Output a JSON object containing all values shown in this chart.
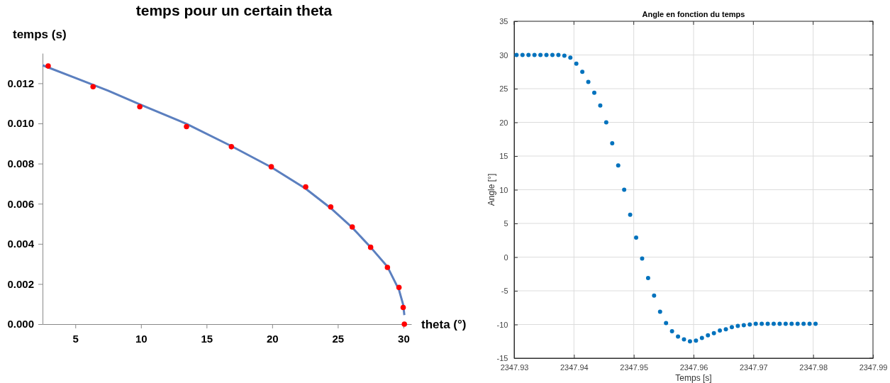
{
  "chart_data": [
    {
      "type": "scatter",
      "title": "temps pour un certain theta",
      "xlabel": "theta (°)",
      "ylabel": "temps (s)",
      "xlim": [
        2.5,
        30.6
      ],
      "ylim": [
        0,
        0.0135
      ],
      "xticks": [
        5,
        10,
        15,
        20,
        25,
        30
      ],
      "yticks": [
        {
          "value": 0,
          "label": "0.000"
        },
        {
          "value": 0.002,
          "label": "0.002"
        },
        {
          "value": 0.004,
          "label": "0.004"
        },
        {
          "value": 0.006,
          "label": "0.006"
        },
        {
          "value": 0.008,
          "label": "0.008"
        },
        {
          "value": 0.01,
          "label": "0.010"
        },
        {
          "value": 0.012,
          "label": "0.012"
        }
      ],
      "grid": false,
      "series": [
        {
          "type": "line",
          "color": "#5b7fbf",
          "line_style": "solid",
          "marker": "none",
          "x": [
            2.5,
            5,
            7.5,
            9.91,
            13.47,
            16.89,
            19.93,
            22.55,
            24.46,
            26.1,
            27.5,
            28.78,
            29.66,
            29.98,
            30.07
          ],
          "values": [
            0.0129,
            0.01227,
            0.01163,
            0.01095,
            0.00998,
            0.00887,
            0.00782,
            0.00675,
            0.00578,
            0.00481,
            0.00383,
            0.00286,
            0.00171,
            0.00097,
            0.00045
          ]
        },
        {
          "type": "scatter",
          "color": "#ff0000",
          "marker": "circle",
          "x": [
            2.93,
            6.35,
            9.91,
            13.47,
            16.89,
            19.93,
            22.55,
            24.46,
            26.1,
            27.5,
            28.78,
            29.66,
            29.98,
            30.07
          ],
          "values": [
            0.01286,
            0.01183,
            0.01083,
            0.00984,
            0.00884,
            0.00784,
            0.00684,
            0.00584,
            0.00484,
            0.00383,
            0.00283,
            0.00183,
            0.00083,
            0
          ]
        }
      ]
    },
    {
      "type": "scatter",
      "title": "Angle en fonction du temps",
      "xlabel": "Temps [s]",
      "ylabel": "Angle [°]",
      "xlim": [
        2347.93,
        2347.99
      ],
      "ylim": [
        -15,
        35
      ],
      "xticks": [
        2347.93,
        2347.94,
        2347.95,
        2347.96,
        2347.97,
        2347.98,
        2347.99
      ],
      "yticks": [
        -15,
        -10,
        -5,
        0,
        5,
        10,
        15,
        20,
        25,
        30,
        35
      ],
      "grid": true,
      "series": [
        {
          "type": "scatter",
          "color": "#0072bd",
          "marker": "circle",
          "x": [
            2347.9304,
            2347.9314,
            2347.9324,
            2347.9334,
            2347.9344,
            2347.9354,
            2347.9364,
            2347.9374,
            2347.9384,
            2347.9394,
            2347.9404,
            2347.9414,
            2347.9424,
            2347.9434,
            2347.9444,
            2347.9454,
            2347.9464,
            2347.9474,
            2347.9484,
            2347.9494,
            2347.9504,
            2347.9514,
            2347.9524,
            2347.9534,
            2347.9544,
            2347.9554,
            2347.9564,
            2347.9574,
            2347.9584,
            2347.9594,
            2347.9604,
            2347.9614,
            2347.9624,
            2347.9634,
            2347.9644,
            2347.9654,
            2347.9664,
            2347.9674,
            2347.9684,
            2347.9694,
            2347.9704,
            2347.9714,
            2347.9724,
            2347.9734,
            2347.9744,
            2347.9754,
            2347.9764,
            2347.9774,
            2347.9784,
            2347.9794,
            2347.9804
          ],
          "values": [
            30,
            30,
            30,
            30,
            30,
            30,
            30,
            30,
            29.9,
            29.6,
            28.7,
            27.5,
            26,
            24.4,
            22.5,
            20,
            16.9,
            13.6,
            10,
            6.3,
            2.9,
            -0.2,
            -3.1,
            -5.7,
            -8.1,
            -9.8,
            -11,
            -11.8,
            -12.2,
            -12.5,
            -12.4,
            -12,
            -11.6,
            -11.3,
            -10.9,
            -10.7,
            -10.4,
            -10.2,
            -10.1,
            -10,
            -9.9,
            -9.9,
            -9.9,
            -9.9,
            -9.9,
            -9.9,
            -9.9,
            -9.9,
            -9.9,
            -9.9,
            -9.9
          ]
        }
      ]
    }
  ]
}
